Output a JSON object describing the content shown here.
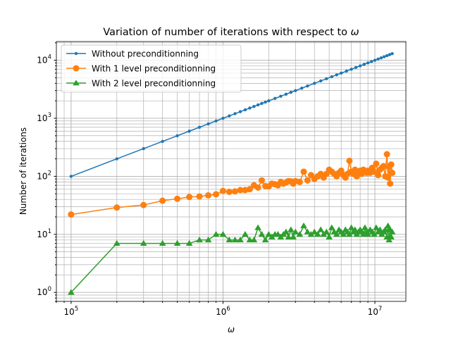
{
  "chart_data": {
    "type": "line",
    "title_prefix": "Variation of number of iterations with respect to ",
    "title_symbol": "ω",
    "xlabel": "ω",
    "ylabel": "Number of iterations",
    "x_scale": "log",
    "y_scale": "log",
    "xlim": [
      80000,
      16000000
    ],
    "ylim": [
      0.7,
      21000
    ],
    "x_ticks": [
      {
        "base": "10",
        "exp": "5"
      },
      {
        "base": "10",
        "exp": "6"
      },
      {
        "base": "10",
        "exp": "7"
      }
    ],
    "y_ticks": [
      {
        "base": "10",
        "exp": "0"
      },
      {
        "base": "10",
        "exp": "1"
      },
      {
        "base": "10",
        "exp": "2"
      },
      {
        "base": "10",
        "exp": "3"
      },
      {
        "base": "10",
        "exp": "4"
      }
    ],
    "grid": "major and minor",
    "legend_position": "upper-left",
    "series": [
      {
        "name": "Without preconditionning",
        "color": "#1f77b4",
        "marker": "dot",
        "x": [
          100000,
          200000,
          300000,
          400000,
          500000,
          600000,
          700000,
          800000,
          900000,
          1000000,
          1100000,
          1200000,
          1300000,
          1400000,
          1500000,
          1600000,
          1700000,
          1800000,
          1900000,
          2000000,
          2200000,
          2400000,
          2600000,
          2800000,
          3000000,
          3300000,
          3600000,
          4000000,
          4400000,
          4800000,
          5200000,
          5600000,
          6000000,
          6500000,
          7000000,
          7500000,
          8000000,
          8500000,
          9000000,
          9500000,
          10000000,
          10500000,
          11000000,
          11500000,
          12000000,
          12500000,
          13000000
        ],
        "values": [
          100,
          200,
          300,
          400,
          500,
          600,
          700,
          800,
          900,
          1000,
          1100,
          1200,
          1300,
          1400,
          1500,
          1600,
          1700,
          1800,
          1900,
          2000,
          2200,
          2400,
          2600,
          2800,
          3000,
          3300,
          3600,
          4000,
          4400,
          4800,
          5200,
          5600,
          6000,
          6500,
          7000,
          7500,
          8000,
          8500,
          9000,
          9500,
          10000,
          10500,
          11000,
          11500,
          12000,
          12500,
          13000
        ]
      },
      {
        "name": "With 1 level preconditionning",
        "color": "#ff7f0e",
        "marker": "circle",
        "x": [
          100000,
          200000,
          300000,
          400000,
          500000,
          600000,
          700000,
          800000,
          900000,
          1000000,
          1100000,
          1200000,
          1300000,
          1400000,
          1500000,
          1600000,
          1700000,
          1800000,
          1900000,
          2000000,
          2100000,
          2200000,
          2300000,
          2400000,
          2500000,
          2600000,
          2700000,
          2800000,
          2900000,
          3000000,
          3200000,
          3400000,
          3600000,
          3800000,
          4000000,
          4200000,
          4400000,
          4600000,
          4800000,
          5000000,
          5200000,
          5400000,
          5600000,
          5800000,
          6000000,
          6200000,
          6400000,
          6600000,
          6800000,
          7000000,
          7200000,
          7400000,
          7600000,
          7800000,
          8000000,
          8200000,
          8400000,
          8600000,
          8800000,
          9000000,
          9300000,
          9600000,
          9900000,
          10200000,
          10500000,
          10800000,
          11100000,
          11400000,
          11700000,
          12000000,
          12200000,
          12400000,
          12600000,
          12800000,
          13000000
        ],
        "values": [
          22,
          29,
          32,
          38,
          41,
          44,
          45,
          47,
          49,
          56,
          54,
          55,
          58,
          58,
          60,
          70,
          64,
          85,
          68,
          67,
          75,
          73,
          70,
          80,
          75,
          78,
          83,
          82,
          75,
          83,
          80,
          120,
          85,
          105,
          90,
          100,
          110,
          95,
          110,
          130,
          120,
          110,
          100,
          115,
          125,
          105,
          95,
          110,
          185,
          120,
          110,
          130,
          100,
          115,
          125,
          110,
          130,
          120,
          115,
          125,
          115,
          140,
          120,
          165,
          105,
          130,
          140,
          150,
          100,
          240,
          95,
          145,
          75,
          160,
          115
        ]
      },
      {
        "name": "With 2 level preconditionning",
        "color": "#2ca02c",
        "marker": "triangle",
        "x": [
          100000,
          200000,
          300000,
          400000,
          500000,
          600000,
          700000,
          800000,
          900000,
          1000000,
          1100000,
          1200000,
          1300000,
          1400000,
          1500000,
          1600000,
          1700000,
          1800000,
          1900000,
          2000000,
          2100000,
          2200000,
          2300000,
          2400000,
          2500000,
          2600000,
          2700000,
          2800000,
          2900000,
          3000000,
          3200000,
          3400000,
          3600000,
          3800000,
          4000000,
          4200000,
          4400000,
          4600000,
          4800000,
          5000000,
          5200000,
          5400000,
          5600000,
          5800000,
          6000000,
          6200000,
          6400000,
          6600000,
          6800000,
          7000000,
          7200000,
          7400000,
          7600000,
          7800000,
          8000000,
          8200000,
          8400000,
          8600000,
          8800000,
          9000000,
          9300000,
          9600000,
          9900000,
          10200000,
          10500000,
          10800000,
          11100000,
          11400000,
          11700000,
          12000000,
          12200000,
          12400000,
          12600000,
          12800000,
          13000000
        ],
        "values": [
          1,
          7,
          7,
          7,
          7,
          7,
          8,
          8,
          10,
          10,
          8,
          8,
          8,
          10,
          8,
          8,
          13,
          10,
          8,
          10,
          9,
          10,
          10,
          9,
          10,
          11,
          9,
          12,
          9,
          11,
          10,
          14,
          11,
          10,
          11,
          10,
          12,
          10,
          11,
          9,
          13,
          11,
          10,
          12,
          11,
          10,
          12,
          11,
          10,
          13,
          11,
          12,
          10,
          11,
          12,
          11,
          10,
          13,
          11,
          10,
          12,
          11,
          10,
          13,
          11,
          12,
          10,
          11,
          12,
          9,
          14,
          8,
          12,
          9,
          11
        ]
      }
    ]
  }
}
